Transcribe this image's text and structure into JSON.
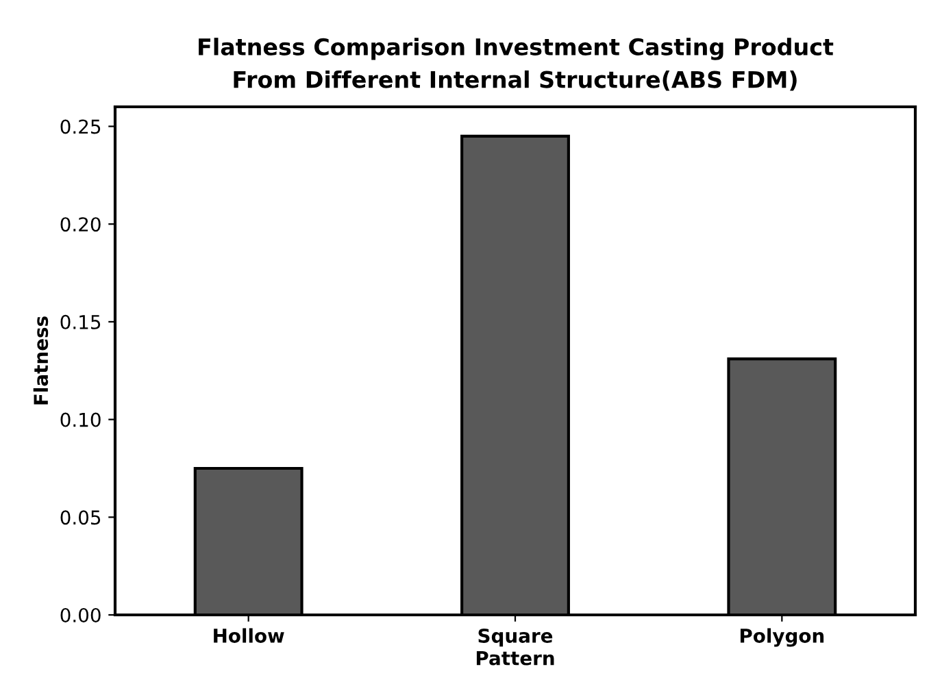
{
  "chart_data": {
    "type": "bar",
    "title": "Flatness Comparison Investment Casting Product\nFrom Different Internal Structure(ABS FDM)",
    "xlabel": "Pattern",
    "ylabel": "Flatness",
    "categories": [
      "Hollow",
      "Square",
      "Polygon"
    ],
    "values": [
      0.075,
      0.245,
      0.131
    ],
    "color": "#595959",
    "ylim": [
      0,
      0.26
    ],
    "yticks": [
      {
        "value": 0,
        "label": "0.00"
      },
      {
        "value": 0.05,
        "label": "0.05"
      },
      {
        "value": 0.1,
        "label": "0.10"
      },
      {
        "value": 0.15,
        "label": "0.15"
      },
      {
        "value": 0.2,
        "label": "0.20"
      },
      {
        "value": 0.25,
        "label": "0.25"
      }
    ],
    "grid": false
  }
}
